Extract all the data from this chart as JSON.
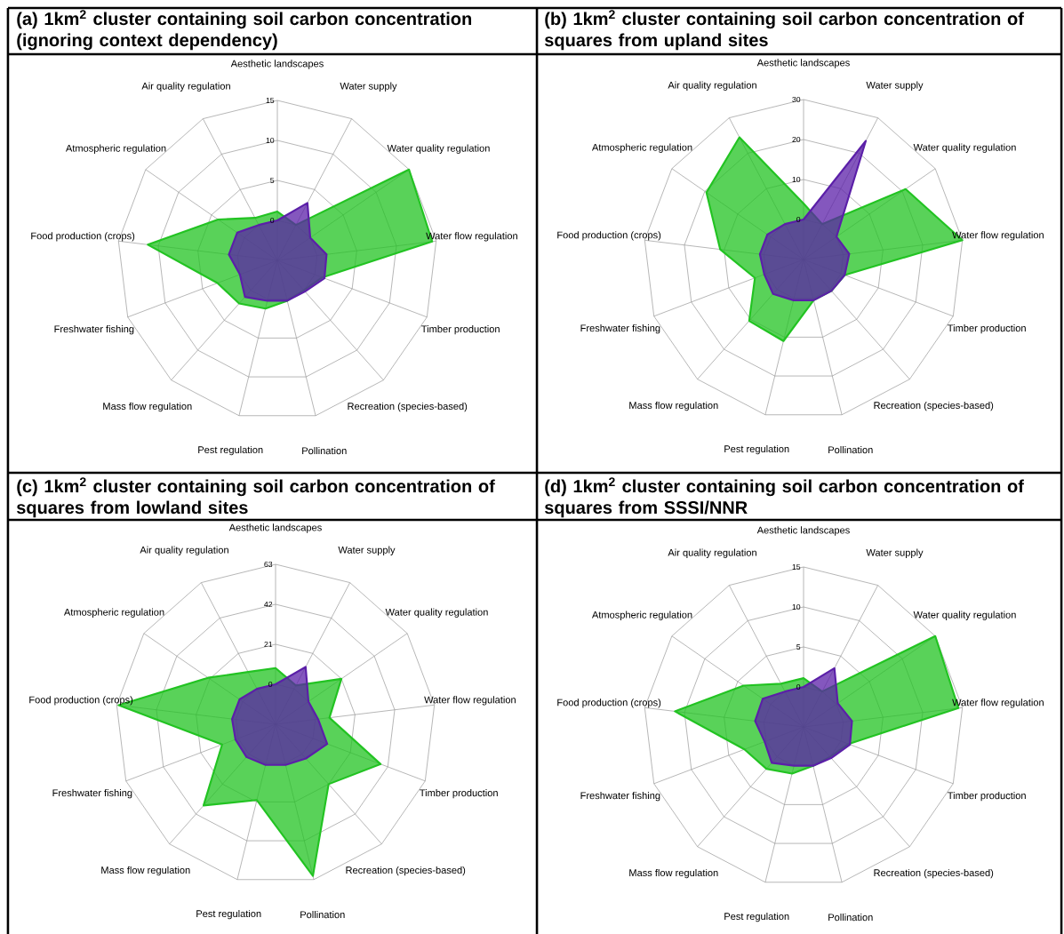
{
  "chart_data": [
    {
      "type": "radar",
      "title": "(a) 1km$^{2}$ cluster containing soil carbon concentration (ignoring context dependency)",
      "categories": [
        "Aesthetic landscapes",
        "Water supply",
        "Water quality regulation",
        "Water flow regulation",
        "Timber production",
        "Recreation (species-based)",
        "Pollination",
        "Pest regulation",
        "Mass flow regulation",
        "Freshwater fishing",
        "Food production (crops)",
        "Atmospheric regulation",
        "Air quality regulation"
      ],
      "series": [
        {
          "color": "#22c322",
          "values": [
            1.1,
            0,
            15,
            14.5,
            1,
            0,
            0.2,
            1.2,
            2.2,
            3,
            11.3,
            4,
            1
          ]
        },
        {
          "color": "#5b1fa8",
          "values": [
            0,
            3.1,
            0,
            1.2,
            1.3,
            0.2,
            0.2,
            0.2,
            1.1,
            0,
            1.1,
            1.1,
            0
          ]
        }
      ],
      "ylim": [
        -5,
        15
      ],
      "yticks": [
        0,
        5,
        10,
        15
      ],
      "grid": true
    },
    {
      "type": "radar",
      "title": "(b) 1km$^{2}$ cluster containing soil carbon concentration of squares from upland sites",
      "categories": [
        "Aesthetic landscapes",
        "Water supply",
        "Water quality regulation",
        "Water flow regulation",
        "Timber production",
        "Recreation (species-based)",
        "Pollination",
        "Pest regulation",
        "Mass flow regulation",
        "Freshwater fishing",
        "Food production (crops)",
        "Atmospheric regulation",
        "Air quality regulation"
      ],
      "series": [
        {
          "color": "#22c322",
          "values": [
            4,
            0,
            21,
            30,
            1,
            0.5,
            0.5,
            11,
            10.5,
            3,
            11,
            19.5,
            24.5
          ]
        },
        {
          "color": "#5b1fa8",
          "values": [
            0,
            23.5,
            0,
            1.5,
            1,
            0.5,
            0.5,
            0.5,
            1.5,
            0.5,
            1,
            1,
            0
          ]
        }
      ],
      "ylim": [
        -10,
        30
      ],
      "yticks": [
        0,
        10,
        20,
        30
      ],
      "grid": true
    },
    {
      "type": "radar",
      "title": "(c) 1km$^{2}$ cluster containing soil carbon concentration of squares from lowland sites",
      "categories": [
        "Aesthetic landscapes",
        "Water supply",
        "Water quality regulation",
        "Water flow regulation",
        "Timber production",
        "Recreation (species-based)",
        "Pollination",
        "Pest regulation",
        "Mass flow regulation",
        "Freshwater fishing",
        "Food production (crops)",
        "Atmospheric regulation",
        "Air quality regulation"
      ],
      "series": [
        {
          "color": "#22c322",
          "values": [
            8.5,
            2,
            21,
            7.5,
            38,
            21,
            61,
            20,
            36,
            9,
            62,
            22,
            10
          ]
        },
        {
          "color": "#5b1fa8",
          "values": [
            0,
            13,
            0,
            1.5,
            8,
            3,
            1,
            1,
            2,
            1.5,
            2,
            2,
            0
          ]
        }
      ],
      "ylim": [
        -21,
        63
      ],
      "yticks": [
        0,
        21,
        42,
        63
      ],
      "grid": true
    },
    {
      "type": "radar",
      "title": "(d) 1km$^{2}$ cluster containing soil carbon concentration of squares from SSSI/NNR",
      "categories": [
        "Aesthetic landscapes",
        "Water supply",
        "Water quality regulation",
        "Water flow regulation",
        "Timber production",
        "Recreation (species-based)",
        "Pollination",
        "Pest regulation",
        "Mass flow regulation",
        "Freshwater fishing",
        "Food production (crops)",
        "Atmospheric regulation",
        "Air quality regulation"
      ],
      "series": [
        {
          "color": "#22c322",
          "values": [
            1.1,
            0,
            15,
            14.5,
            1,
            0,
            0,
            1,
            2,
            2.9,
            11.2,
            4.1,
            1.1
          ]
        },
        {
          "color": "#5b1fa8",
          "values": [
            0,
            3.3,
            0.2,
            1.1,
            1.2,
            0.2,
            0,
            0,
            1,
            0.2,
            1.1,
            1.2,
            0
          ]
        }
      ],
      "ylim": [
        -5,
        15
      ],
      "yticks": [
        0,
        5,
        10,
        15
      ],
      "grid": true
    }
  ]
}
